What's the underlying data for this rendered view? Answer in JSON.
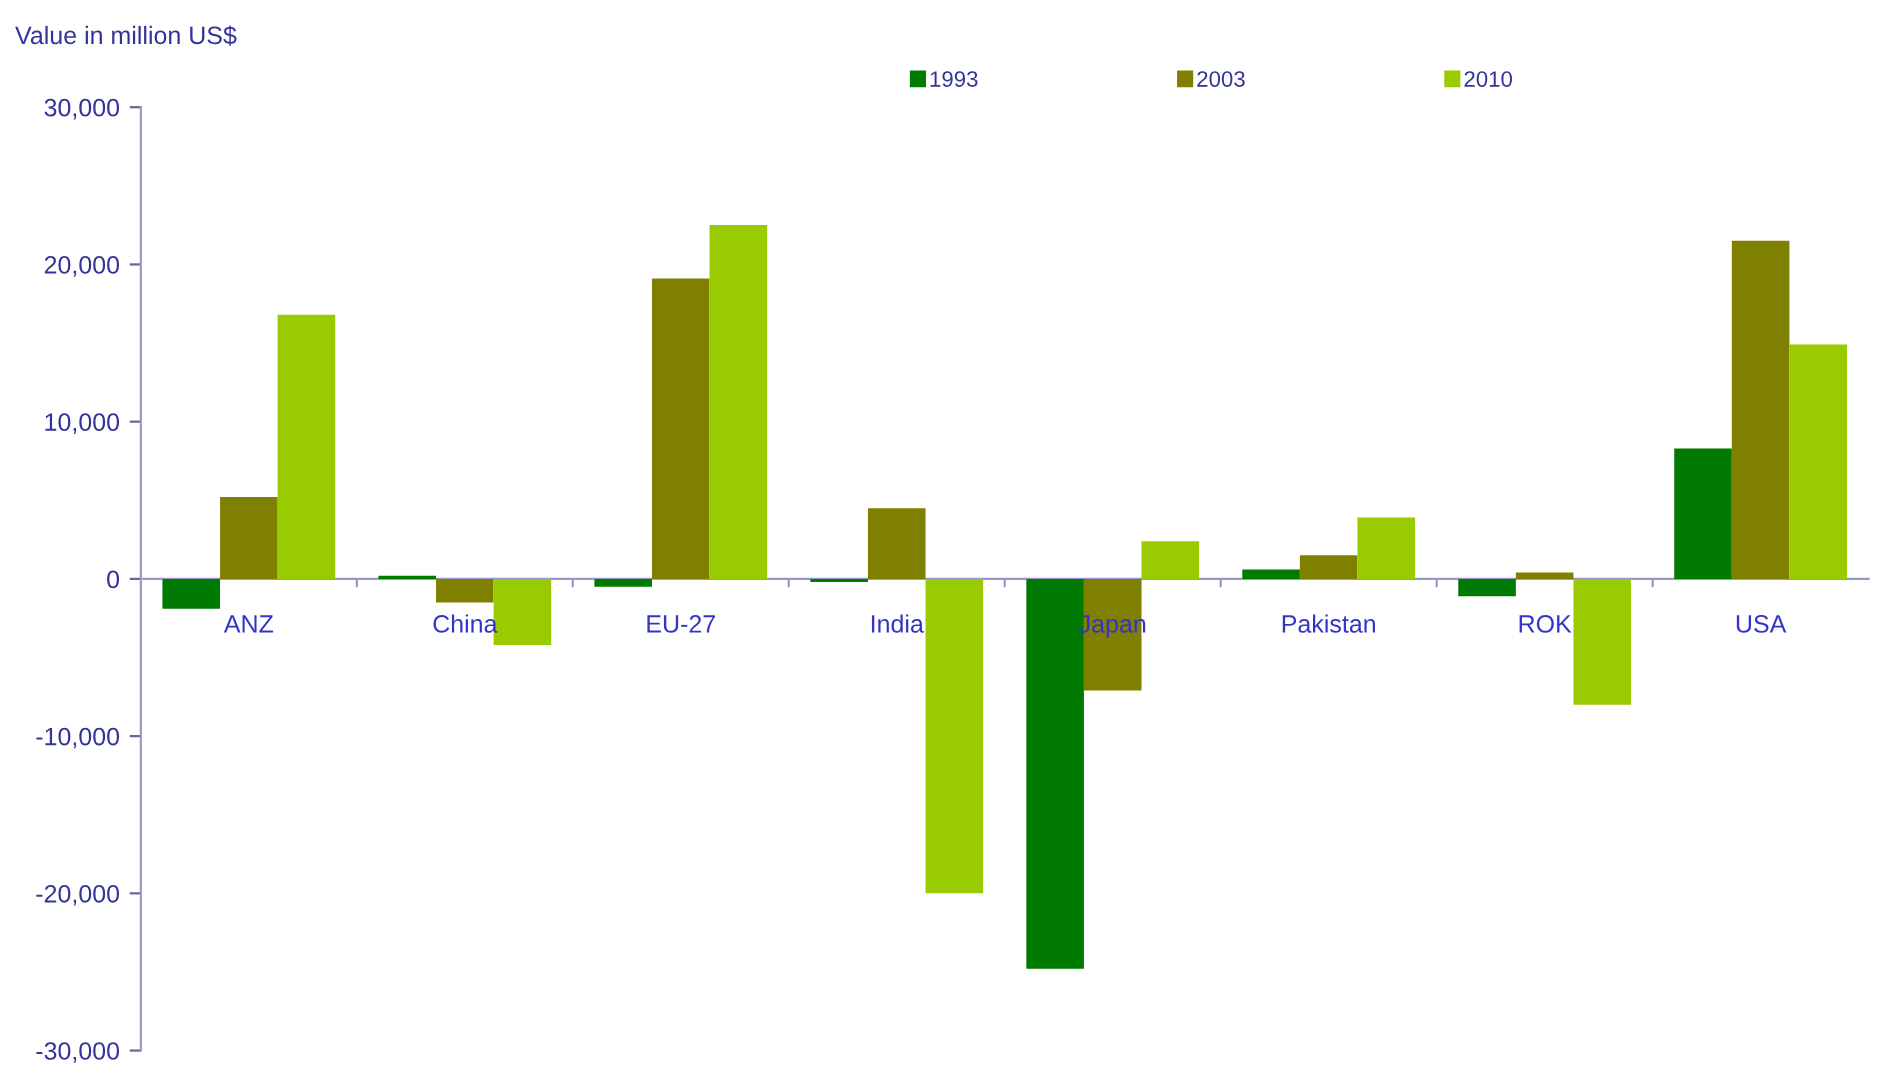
{
  "chart_data": {
    "type": "bar",
    "ylabel": "Value in million US$",
    "categories": [
      "ANZ",
      "China",
      "EU-27",
      "India",
      "Japan",
      "Pakistan",
      "ROK",
      "USA"
    ],
    "series": [
      {
        "name": "1993",
        "color": "#007a00",
        "values": [
          -1900,
          200,
          -500,
          -200,
          -24800,
          600,
          -1100,
          8300
        ]
      },
      {
        "name": "2003",
        "color": "#808000",
        "values": [
          5200,
          -1500,
          19100,
          4500,
          -7100,
          1500,
          400,
          21500
        ]
      },
      {
        "name": "2010",
        "color": "#99cc00",
        "values": [
          16800,
          -4200,
          22500,
          -20000,
          2400,
          3900,
          -8000,
          14900
        ]
      }
    ],
    "ylim": [
      -30000,
      30000
    ],
    "yticks": [
      {
        "value": -30000,
        "label": "-30,000"
      },
      {
        "value": -20000,
        "label": "-20,000"
      },
      {
        "value": -10000,
        "label": "-10,000"
      },
      0,
      {
        "value": 10000,
        "label": "10,000"
      },
      {
        "value": 20000,
        "label": "20,000"
      },
      {
        "value": 30000,
        "label": "30,000"
      }
    ],
    "legend": "top"
  }
}
